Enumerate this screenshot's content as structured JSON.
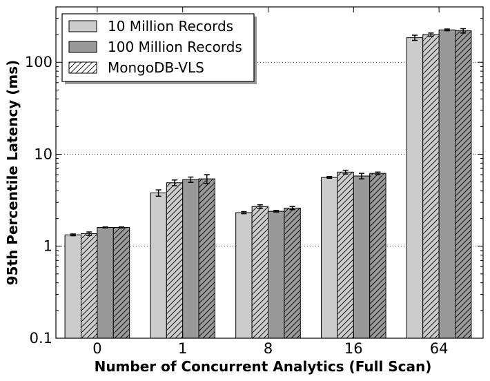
{
  "chart_data": {
    "type": "bar",
    "title": "",
    "xlabel": "Number of Concurrent Analytics (Full Scan)",
    "ylabel": "95th Percentile Latency (ms)",
    "y_scale": "log",
    "ylim": [
      0.1,
      400
    ],
    "yticks": [
      0.1,
      1,
      10,
      100
    ],
    "ytick_labels": [
      "0.1",
      "1",
      "10",
      "100"
    ],
    "grid": "horizontal dotted",
    "legend_position": "top-left",
    "categories": [
      "0",
      "1",
      "8",
      "16",
      "64"
    ],
    "series": [
      {
        "legend_index": 0,
        "fill": "#cccccc",
        "hatch": false,
        "values": [
          1.33,
          3.8,
          2.32,
          5.6,
          185
        ],
        "errors": [
          0.03,
          0.3,
          0.06,
          0.12,
          12
        ]
      },
      {
        "legend_index": 2,
        "fill": "#cccccc",
        "hatch": true,
        "values": [
          1.37,
          4.9,
          2.7,
          6.4,
          200
        ],
        "errors": [
          0.06,
          0.35,
          0.12,
          0.3,
          8
        ]
      },
      {
        "legend_index": 1,
        "fill": "#999999",
        "hatch": false,
        "values": [
          1.6,
          5.3,
          2.4,
          5.8,
          225
        ],
        "errors": [
          0.02,
          0.35,
          0.05,
          0.4,
          5
        ]
      },
      {
        "legend_index": 2,
        "fill": "#999999",
        "hatch": true,
        "values": [
          1.6,
          5.4,
          2.6,
          6.2,
          220
        ],
        "errors": [
          0.02,
          0.6,
          0.1,
          0.2,
          12
        ]
      }
    ]
  },
  "legend": {
    "items": [
      {
        "label": "10 Million Records",
        "fill": "#cccccc",
        "hatch": false
      },
      {
        "label": "100 Million Records",
        "fill": "#999999",
        "hatch": false
      },
      {
        "label": "MongoDB-VLS",
        "fill": "#ffffff",
        "hatch": true
      }
    ]
  }
}
